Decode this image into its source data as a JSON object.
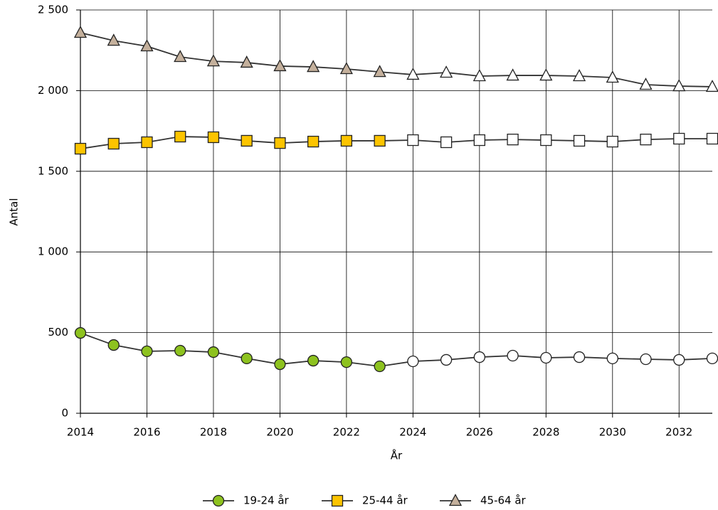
{
  "chart_data": {
    "type": "line",
    "y_label": "Antal",
    "x_label": "År",
    "x": [
      2014,
      2015,
      2016,
      2017,
      2018,
      2019,
      2020,
      2021,
      2022,
      2023,
      2024,
      2025,
      2026,
      2027,
      2028,
      2029,
      2030,
      2031,
      2032,
      2033
    ],
    "xlim": [
      2014,
      2033
    ],
    "xticks": [
      2014,
      2016,
      2018,
      2020,
      2022,
      2024,
      2026,
      2028,
      2030,
      2032
    ],
    "ylim": [
      0,
      2500
    ],
    "yticks": [
      0,
      500,
      {
        "value": 1000,
        "label": "1 000"
      },
      {
        "value": 1500,
        "label": "1 500"
      },
      {
        "value": 2000,
        "label": "2 000"
      },
      {
        "value": 2500,
        "label": "2 500"
      }
    ],
    "grid": true,
    "legend": "bottom",
    "forecast_from": 2024,
    "forecast_color": "#ffffff",
    "series": [
      {
        "name": "19-24 år",
        "marker": "circle",
        "color": "#8dc21f",
        "values": [
          498,
          423,
          384,
          388,
          379,
          340,
          304,
          326,
          317,
          291,
          322,
          331,
          348,
          357,
          344,
          348,
          340,
          335,
          331,
          340
        ]
      },
      {
        "name": "25-44 år",
        "marker": "square",
        "color": "#fcc400",
        "values": [
          1640,
          1671,
          1680,
          1715,
          1711,
          1689,
          1675,
          1684,
          1689,
          1689,
          1693,
          1680,
          1693,
          1697,
          1693,
          1689,
          1684,
          1697,
          1702,
          1702
        ]
      },
      {
        "name": "45-64 år",
        "marker": "triangle",
        "color": "#c4b09c",
        "values": [
          2359,
          2310,
          2275,
          2209,
          2182,
          2174,
          2152,
          2147,
          2134,
          2116,
          2099,
          2112,
          2090,
          2094,
          2094,
          2090,
          2081,
          2037,
          2028,
          2024
        ]
      }
    ]
  }
}
